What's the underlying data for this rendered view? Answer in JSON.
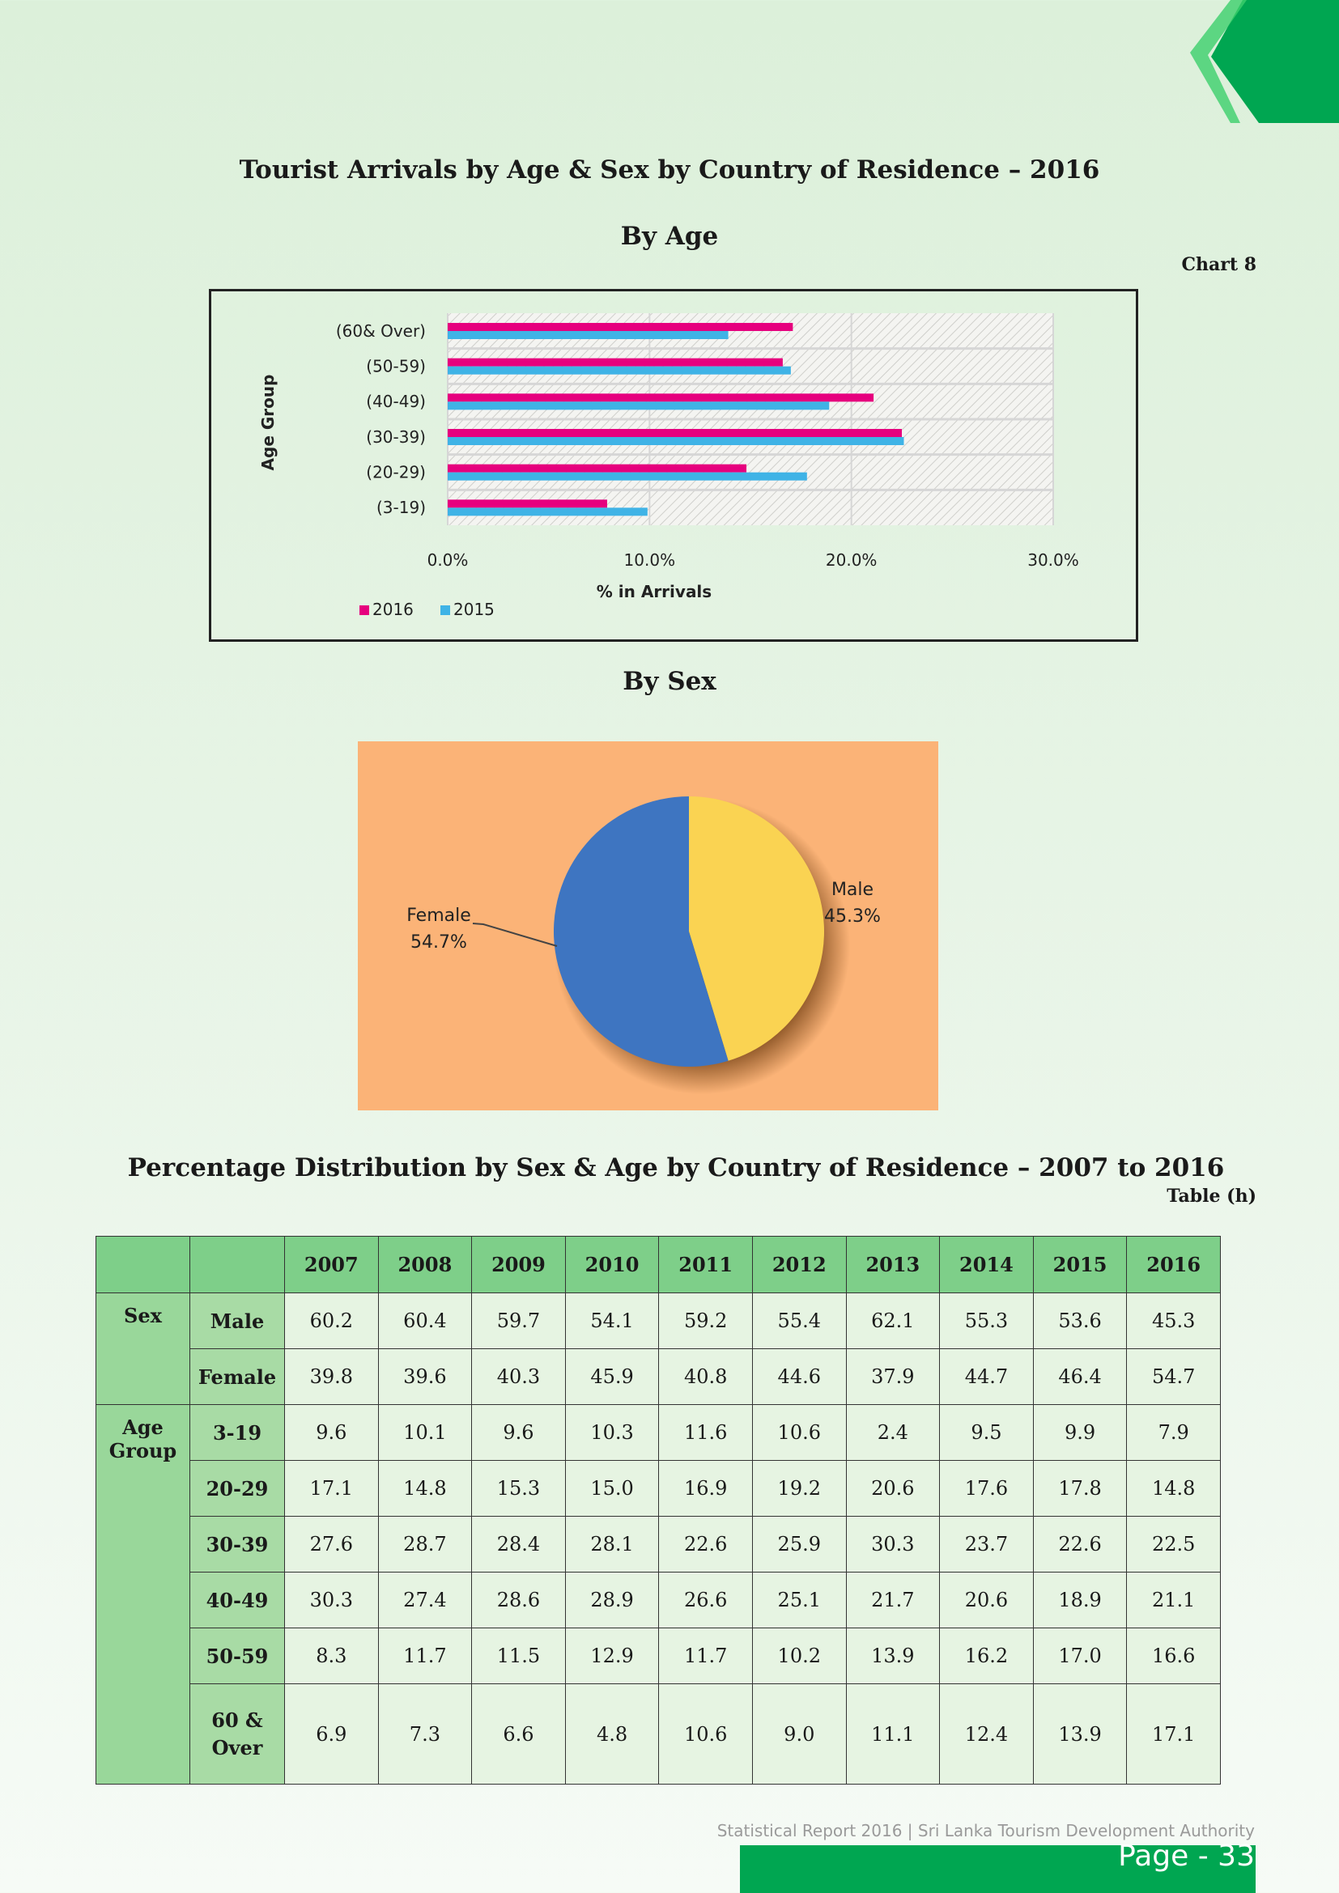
{
  "page": {
    "title": "Tourist Arrivals by Age & Sex by Country of Residence – 2016",
    "chart_ref": "Chart 8",
    "footer_text": "Statistical Report 2016  |  Sri Lanka Tourism Development Authority",
    "page_number": "Page - 33",
    "colors": {
      "green": "#00a651",
      "light_green": "#00c853",
      "pie_bg": "#fbb377"
    }
  },
  "chart_data": [
    {
      "type": "bar",
      "orientation": "horizontal",
      "title": "By Age",
      "xlabel": "% in Arrivals",
      "ylabel": "Age Group",
      "categories": [
        "(60& Over)",
        "(50-59)",
        "(40-49)",
        "(30-39)",
        "(20-29)",
        "(3-19)"
      ],
      "series": [
        {
          "name": "2016",
          "color": "#e6007e",
          "values": [
            17.1,
            16.6,
            21.1,
            22.5,
            14.8,
            7.9
          ]
        },
        {
          "name": "2015",
          "color": "#3fb3e6",
          "values": [
            13.9,
            17.0,
            18.9,
            22.6,
            17.8,
            9.9
          ]
        }
      ],
      "xlim": [
        0,
        30
      ],
      "xticks": [
        "0.0%",
        "10.0%",
        "20.0%",
        "30.0%"
      ],
      "grid": true,
      "legend": "bottom-left"
    },
    {
      "type": "pie",
      "title": "By Sex",
      "slices": [
        {
          "label": "Male",
          "value": 45.3,
          "display": "45.3%",
          "color": "#fad352"
        },
        {
          "label": "Female",
          "value": 54.7,
          "display": "54.7%",
          "color": "#3e75c1"
        }
      ]
    }
  ],
  "table": {
    "title": "Percentage Distribution by Sex & Age by Country of Residence – 2007 to 2016",
    "ref": "Table (h)",
    "years": [
      "2007",
      "2008",
      "2009",
      "2010",
      "2011",
      "2012",
      "2013",
      "2014",
      "2015",
      "2016"
    ],
    "sex_label": "Sex",
    "age_label": "Age Group",
    "sex_rows": [
      {
        "label": "Male",
        "values": [
          "60.2",
          "60.4",
          "59.7",
          "54.1",
          "59.2",
          "55.4",
          "62.1",
          "55.3",
          "53.6",
          "45.3"
        ]
      },
      {
        "label": "Female",
        "values": [
          "39.8",
          "39.6",
          "40.3",
          "45.9",
          "40.8",
          "44.6",
          "37.9",
          "44.7",
          "46.4",
          "54.7"
        ]
      }
    ],
    "age_rows": [
      {
        "label": "3-19",
        "values": [
          "9.6",
          "10.1",
          "9.6",
          "10.3",
          "11.6",
          "10.6",
          "2.4",
          "9.5",
          "9.9",
          "7.9"
        ]
      },
      {
        "label": "20-29",
        "values": [
          "17.1",
          "14.8",
          "15.3",
          "15.0",
          "16.9",
          "19.2",
          "20.6",
          "17.6",
          "17.8",
          "14.8"
        ]
      },
      {
        "label": "30-39",
        "values": [
          "27.6",
          "28.7",
          "28.4",
          "28.1",
          "22.6",
          "25.9",
          "30.3",
          "23.7",
          "22.6",
          "22.5"
        ]
      },
      {
        "label": "40-49",
        "values": [
          "30.3",
          "27.4",
          "28.6",
          "28.9",
          "26.6",
          "25.1",
          "21.7",
          "20.6",
          "18.9",
          "21.1"
        ]
      },
      {
        "label": "50-59",
        "values": [
          "8.3",
          "11.7",
          "11.5",
          "12.9",
          "11.7",
          "10.2",
          "13.9",
          "16.2",
          "17.0",
          "16.6"
        ]
      },
      {
        "label": "60 & Over",
        "values": [
          "6.9",
          "7.3",
          "6.6",
          "4.8",
          "10.6",
          "9.0",
          "11.1",
          "12.4",
          "13.9",
          "17.1"
        ]
      }
    ]
  }
}
